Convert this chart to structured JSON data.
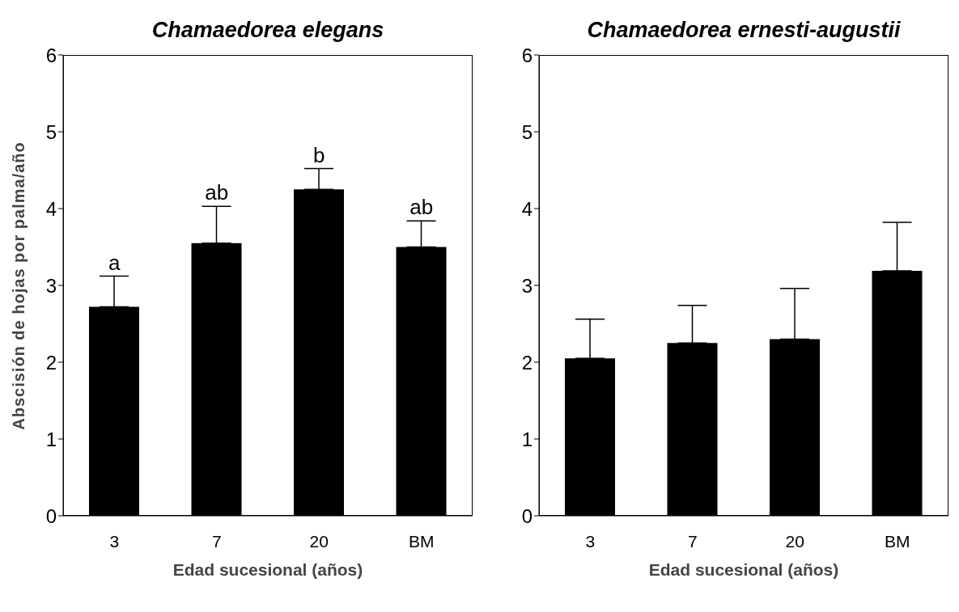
{
  "chart_data": [
    {
      "type": "bar",
      "title": "Chamaedorea elegans",
      "xlabel": "Edad sucesional (años)",
      "ylabel": "Abscisión de hojas por palma/año",
      "categories": [
        "3",
        "7",
        "20",
        "BM"
      ],
      "values": [
        2.72,
        3.55,
        4.25,
        3.5
      ],
      "color": "#000000",
      "errors": [
        [
          2.72,
          3.12
        ],
        [
          3.55,
          4.03
        ],
        [
          4.25,
          4.52
        ],
        [
          3.5,
          3.84
        ]
      ],
      "ylim": [
        0,
        6
      ],
      "yticks": [
        0,
        1,
        2,
        3,
        4,
        5,
        6
      ],
      "grid": false,
      "legend": false,
      "annotations": [
        {
          "text": "a",
          "x": "3",
          "y": 3.12
        },
        {
          "text": "ab",
          "x": "7",
          "y": 4.03
        },
        {
          "text": "b",
          "x": "20",
          "y": 4.52
        },
        {
          "text": "ab",
          "x": "BM",
          "y": 3.84
        }
      ]
    },
    {
      "type": "bar",
      "title": "Chamaedorea ernesti-augustii",
      "xlabel": "Edad sucesional (años)",
      "categories": [
        "3",
        "7",
        "20",
        "BM"
      ],
      "values": [
        2.05,
        2.25,
        2.3,
        3.19
      ],
      "color": "#000000",
      "errors": [
        [
          2.05,
          2.56
        ],
        [
          2.25,
          2.74
        ],
        [
          2.3,
          2.96
        ],
        [
          3.19,
          3.82
        ]
      ],
      "ylim": [
        0,
        6
      ],
      "yticks": [
        0,
        1,
        2,
        3,
        4,
        5,
        6
      ],
      "grid": false,
      "legend": false
    }
  ]
}
